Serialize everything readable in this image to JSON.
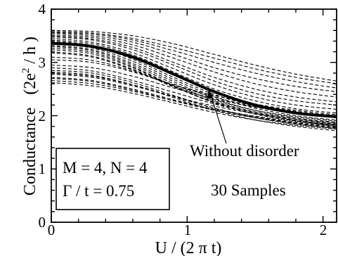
{
  "chart_data": {
    "type": "line",
    "xlabel": "U / (2 π t)",
    "ylabel_text": "Conductance",
    "ylabel_unit_open": "(2e",
    "ylabel_unit_sup": "2",
    "ylabel_unit_close": " / h )",
    "xlim": [
      0,
      2.1
    ],
    "ylim": [
      0,
      4
    ],
    "x_ticks": [
      0,
      1,
      2
    ],
    "x_tick_labels": [
      "0",
      "1",
      "2"
    ],
    "y_ticks": [
      0,
      1,
      2,
      3,
      4
    ],
    "y_tick_labels": [
      "0",
      "1",
      "2",
      "3",
      "4"
    ],
    "grid": false,
    "annotations": {
      "box_line1": "M = 4, N = 4",
      "box_line2": "Γ / t = 0.75",
      "without_disorder": "Without disorder",
      "samples": "30 Samples"
    },
    "x": [
      0,
      0.3,
      0.6,
      0.9,
      1.2,
      1.5,
      1.8,
      2.1
    ],
    "series": [
      {
        "style": "solid",
        "values": [
          3.36,
          3.3,
          3.1,
          2.78,
          2.45,
          2.2,
          2.05,
          1.98
        ]
      },
      {
        "style": "dashed",
        "values": [
          3.6,
          3.58,
          3.5,
          3.35,
          3.15,
          2.95,
          2.78,
          2.65
        ]
      },
      {
        "style": "dashed",
        "values": [
          3.58,
          3.55,
          3.45,
          3.28,
          3.08,
          2.88,
          2.72,
          2.6
        ]
      },
      {
        "style": "dashed",
        "values": [
          3.56,
          3.53,
          3.42,
          3.22,
          3.0,
          2.8,
          2.64,
          2.52
        ]
      },
      {
        "style": "dashed",
        "values": [
          3.55,
          3.5,
          3.38,
          3.15,
          2.9,
          2.7,
          2.55,
          2.45
        ]
      },
      {
        "style": "dashed",
        "values": [
          3.52,
          3.47,
          3.33,
          3.08,
          2.82,
          2.6,
          2.45,
          2.35
        ]
      },
      {
        "style": "dashed",
        "values": [
          3.5,
          3.44,
          3.28,
          3.0,
          2.72,
          2.5,
          2.35,
          2.26
        ]
      },
      {
        "style": "dashed",
        "values": [
          3.48,
          3.42,
          3.24,
          2.95,
          2.65,
          2.42,
          2.28,
          2.2
        ]
      },
      {
        "style": "dashed",
        "values": [
          3.45,
          3.38,
          3.18,
          2.88,
          2.58,
          2.35,
          2.2,
          2.12
        ]
      },
      {
        "style": "dashed",
        "values": [
          3.42,
          3.35,
          3.14,
          2.82,
          2.5,
          2.28,
          2.13,
          2.05
        ]
      },
      {
        "style": "dashed",
        "values": [
          3.4,
          3.32,
          3.1,
          2.76,
          2.45,
          2.22,
          2.08,
          2.0
        ]
      },
      {
        "style": "dashed",
        "values": [
          3.38,
          3.3,
          3.06,
          2.72,
          2.4,
          2.18,
          2.04,
          1.96
        ]
      },
      {
        "style": "dashed",
        "values": [
          3.35,
          3.27,
          3.02,
          2.68,
          2.36,
          2.14,
          2.0,
          1.92
        ]
      },
      {
        "style": "dashed",
        "values": [
          3.32,
          3.24,
          2.98,
          2.64,
          2.32,
          2.1,
          1.96,
          1.88
        ]
      },
      {
        "style": "dashed",
        "values": [
          3.3,
          3.22,
          2.95,
          2.6,
          2.28,
          2.07,
          1.94,
          1.86
        ]
      },
      {
        "style": "dashed",
        "values": [
          3.27,
          3.19,
          2.92,
          2.56,
          2.25,
          2.04,
          1.91,
          1.83
        ]
      },
      {
        "style": "dashed",
        "values": [
          3.24,
          3.16,
          2.9,
          2.55,
          2.24,
          2.03,
          1.9,
          1.82
        ]
      },
      {
        "style": "dashed",
        "values": [
          3.2,
          3.12,
          2.87,
          2.54,
          2.26,
          2.06,
          1.94,
          1.86
        ]
      },
      {
        "style": "dashed",
        "values": [
          3.18,
          3.1,
          2.86,
          2.56,
          2.3,
          2.1,
          1.98,
          1.9
        ]
      },
      {
        "style": "dashed",
        "values": [
          3.1,
          3.04,
          2.84,
          2.58,
          2.35,
          2.17,
          2.05,
          1.97
        ]
      },
      {
        "style": "dashed",
        "values": [
          3.05,
          3.0,
          2.82,
          2.58,
          2.38,
          2.22,
          2.1,
          2.02
        ]
      },
      {
        "style": "dashed",
        "values": [
          2.95,
          2.9,
          2.74,
          2.52,
          2.32,
          2.16,
          2.04,
          1.96
        ]
      },
      {
        "style": "dashed",
        "values": [
          2.9,
          2.84,
          2.66,
          2.44,
          2.22,
          2.04,
          1.9,
          1.8
        ]
      },
      {
        "style": "dashed",
        "values": [
          2.85,
          2.8,
          2.62,
          2.38,
          2.14,
          1.96,
          1.84,
          1.76
        ]
      },
      {
        "style": "dashed",
        "values": [
          2.82,
          2.76,
          2.58,
          2.34,
          2.1,
          1.92,
          1.8,
          1.72
        ]
      },
      {
        "style": "dashed",
        "values": [
          2.8,
          2.74,
          2.58,
          2.36,
          2.14,
          1.98,
          1.86,
          1.78
        ]
      },
      {
        "style": "dashed",
        "values": [
          2.78,
          2.72,
          2.56,
          2.36,
          2.18,
          2.04,
          1.92,
          1.84
        ]
      },
      {
        "style": "dashed",
        "values": [
          2.72,
          2.66,
          2.5,
          2.3,
          2.12,
          1.98,
          1.87,
          1.8
        ]
      },
      {
        "style": "dashed",
        "values": [
          2.7,
          2.64,
          2.48,
          2.28,
          2.1,
          1.96,
          1.85,
          1.77
        ]
      },
      {
        "style": "dashed",
        "values": [
          2.66,
          2.6,
          2.46,
          2.28,
          2.12,
          1.99,
          1.89,
          1.82
        ]
      },
      {
        "style": "dashed",
        "values": [
          2.62,
          2.56,
          2.42,
          2.24,
          2.06,
          1.92,
          1.82,
          1.75
        ]
      }
    ]
  }
}
